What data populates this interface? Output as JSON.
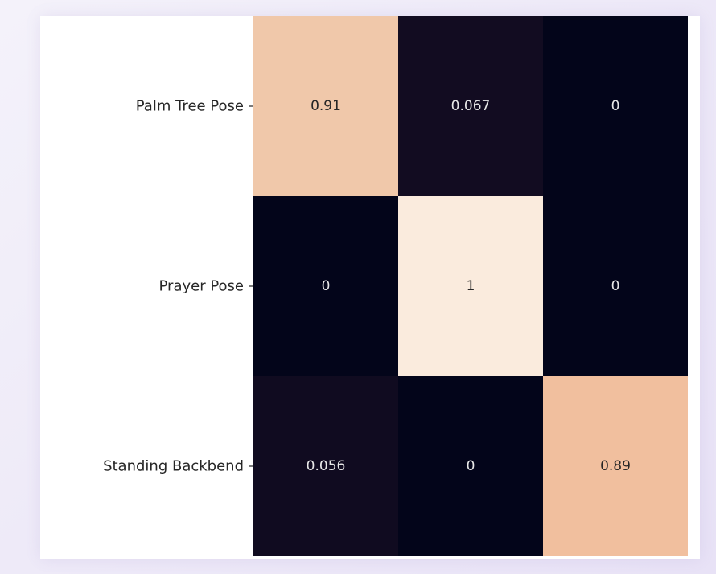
{
  "chart_data": {
    "type": "heatmap",
    "title": "",
    "xlabel": "",
    "ylabel": "",
    "row_labels": [
      "Palm Tree Pose",
      "Prayer Pose",
      "Standing Backbend"
    ],
    "values": [
      [
        0.91,
        0.067,
        0
      ],
      [
        0,
        1,
        0
      ],
      [
        0.056,
        0,
        0.89
      ]
    ],
    "value_labels": [
      [
        "0.91",
        "0.067",
        "0"
      ],
      [
        "0",
        "1",
        "0"
      ],
      [
        "0.056",
        "0",
        "0.89"
      ]
    ],
    "value_range": [
      0,
      1
    ],
    "colormap": "rocket",
    "colors": {
      "low": "#03051a",
      "high": "#faebdd",
      "text_on_dark": "#e8e8e8",
      "text_on_light": "#262626"
    },
    "colorbar": false,
    "grid": false
  }
}
